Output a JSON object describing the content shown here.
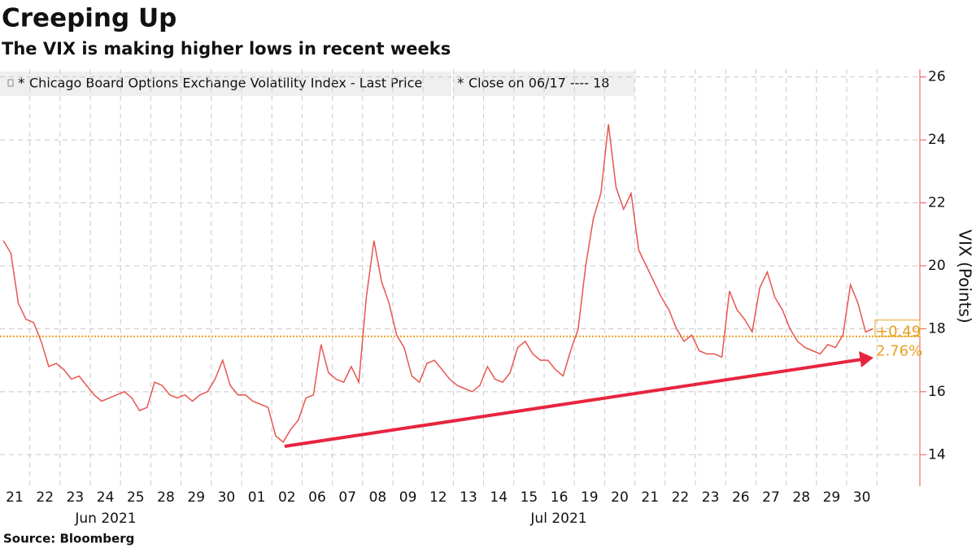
{
  "chart_data": {
    "type": "line",
    "title": "Creeping Up",
    "subtitle": "The VIX is making higher lows in recent weeks",
    "source": "Source:  Bloomberg",
    "y_label": "VIX (Points)",
    "month_labels": [
      "Jun 2021",
      "Jul 2021"
    ],
    "categories": [
      "21",
      null,
      null,
      null,
      "22",
      null,
      null,
      null,
      "23",
      null,
      null,
      null,
      "24",
      null,
      null,
      null,
      "25",
      null,
      null,
      null,
      "28",
      null,
      null,
      null,
      "29",
      null,
      null,
      null,
      "30",
      null,
      null,
      null,
      "01",
      null,
      null,
      null,
      "02",
      null,
      null,
      null,
      "06",
      null,
      null,
      null,
      "07",
      null,
      null,
      null,
      "08",
      null,
      null,
      null,
      "09",
      null,
      null,
      null,
      "12",
      null,
      null,
      null,
      "13",
      null,
      null,
      null,
      "14",
      null,
      null,
      null,
      "15",
      null,
      null,
      null,
      "16",
      null,
      null,
      null,
      "19",
      null,
      null,
      null,
      "20",
      null,
      null,
      null,
      "21",
      null,
      null,
      null,
      "22",
      null,
      null,
      null,
      "23",
      null,
      null,
      null,
      "26",
      null,
      null,
      null,
      "27",
      null,
      null,
      null,
      "28",
      null,
      null,
      null,
      "29",
      null,
      null,
      null,
      "30",
      null,
      null,
      null
    ],
    "series": [
      {
        "name": "Chicago Board Options Exchange Volatility Index - Last Price",
        "color": "#e8554e",
        "values": [
          20.8,
          20.4,
          18.8,
          18.3,
          18.2,
          17.6,
          16.8,
          16.9,
          16.7,
          16.4,
          16.5,
          16.2,
          15.9,
          15.7,
          15.8,
          15.9,
          16.0,
          15.8,
          15.4,
          15.5,
          16.3,
          16.2,
          15.9,
          15.8,
          15.9,
          15.7,
          15.9,
          16.0,
          16.4,
          17.0,
          16.2,
          15.9,
          15.9,
          15.7,
          15.6,
          15.5,
          14.6,
          14.4,
          14.8,
          15.1,
          15.8,
          15.9,
          17.5,
          16.6,
          16.4,
          16.3,
          16.8,
          16.3,
          19.0,
          20.8,
          19.5,
          18.8,
          17.8,
          17.4,
          16.5,
          16.3,
          16.9,
          17.0,
          16.7,
          16.4,
          16.2,
          16.1,
          16.0,
          16.2,
          16.8,
          16.4,
          16.3,
          16.6,
          17.4,
          17.6,
          17.2,
          17.0,
          17.0,
          16.7,
          16.5,
          17.3,
          18.0,
          20.0,
          21.5,
          22.3,
          24.5,
          22.5,
          21.8,
          22.3,
          20.5,
          20.0,
          19.5,
          19.0,
          18.6,
          18.0,
          17.6,
          17.8,
          17.3,
          17.2,
          17.2,
          17.1,
          19.2,
          18.6,
          18.3,
          17.9,
          19.3,
          19.8,
          19.0,
          18.6,
          18.0,
          17.6,
          17.4,
          17.3,
          17.2,
          17.5,
          17.4,
          17.8,
          19.4,
          18.8,
          17.9,
          18.0
        ]
      }
    ],
    "close_line": {
      "label": "Close on 06/17 ---- 18",
      "value": 17.76,
      "color": "#e8a020"
    },
    "annotations": [
      "+0.49",
      "2.76%"
    ],
    "ylim": [
      13,
      26.25
    ],
    "yticks": [
      14,
      16,
      18,
      20,
      22,
      24,
      26
    ],
    "grid": true
  }
}
